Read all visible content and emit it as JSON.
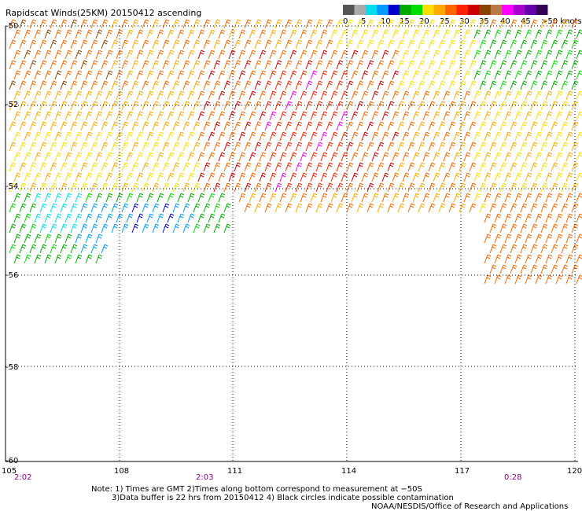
{
  "title": "Rapidscat Winds(25KM) 20150412 ascending",
  "legend": {
    "tick_labels": [
      "0",
      "5",
      "10",
      "15",
      "20",
      "25",
      "30",
      "35",
      "40",
      "45",
      ">50 knots"
    ],
    "colors": [
      "#555555",
      "#aaaaaa",
      "#00ddee",
      "#0099ff",
      "#0000cc",
      "#00aa00",
      "#00dd00",
      "#ffdd00",
      "#ffaa00",
      "#ff6600",
      "#ff2200",
      "#cc0000",
      "#884400",
      "#bb7744",
      "#ff00ff",
      "#aa00cc",
      "#6600aa",
      "#330055"
    ]
  },
  "map": {
    "lon_ticks": [
      "105",
      "108",
      "111",
      "114",
      "117",
      "120"
    ],
    "lat_ticks": [
      "-50",
      "-52",
      "-54",
      "-56",
      "-58",
      "-60"
    ],
    "times": [
      "2:02",
      "2:03",
      "0:28"
    ]
  },
  "notes": {
    "line1": "Note: 1) Times are GMT 2)Times along bottom correspond to measurement at −50S",
    "line2": "3)Data buffer is 22 hrs from 20150412 4) Black circles indicate possible contamination",
    "credit": "NOAA/NESDIS/Office of Research and Applications"
  },
  "colors": {
    "grid": "#000000",
    "time_labels": "#8a008a"
  }
}
